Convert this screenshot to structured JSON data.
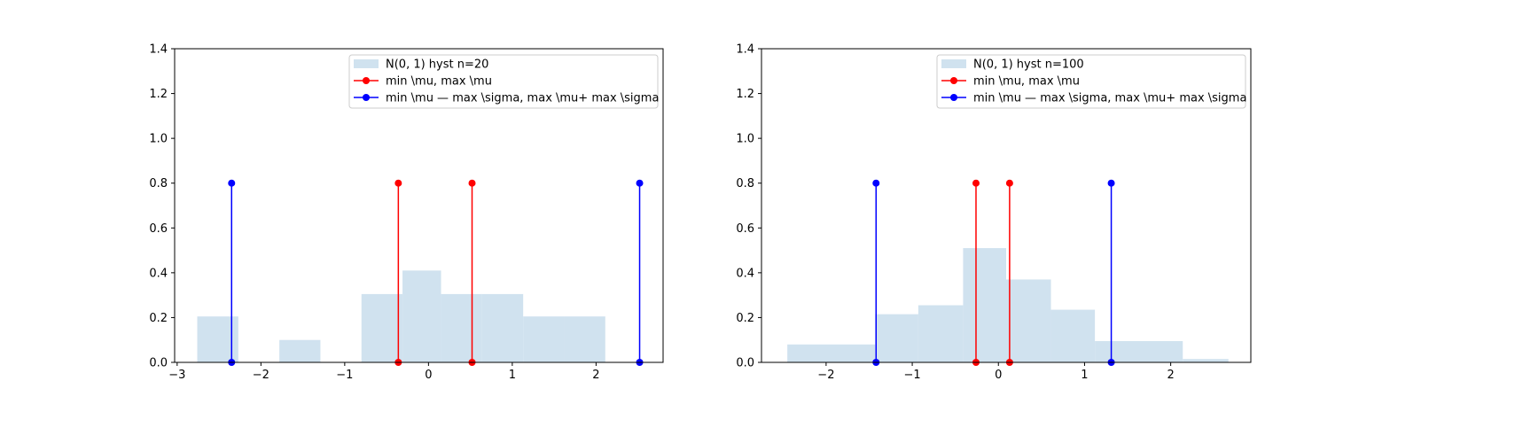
{
  "chart_data": [
    {
      "type": "bar",
      "xlim": [
        -3.03,
        2.8
      ],
      "ylim": [
        0,
        1.4
      ],
      "xticks": [
        "−3",
        "−2",
        "−1",
        "0",
        "1",
        "2"
      ],
      "xtick_values": [
        -3,
        -2,
        -1,
        0,
        1,
        2
      ],
      "yticks": [
        "0.0",
        "0.2",
        "0.4",
        "0.6",
        "0.8",
        "1.0",
        "1.2",
        "1.4"
      ],
      "ytick_values": [
        0,
        0.2,
        0.4,
        0.6,
        0.8,
        1.0,
        1.2,
        1.4
      ],
      "legend_position": "top-right",
      "histogram": {
        "name": "N(0, 1) hyst n=20",
        "color": "#d0e2ef",
        "bins": [
          {
            "x0": -2.76,
            "x1": -2.27,
            "value": 0.205
          },
          {
            "x0": -2.27,
            "x1": -1.78,
            "value": 0.0
          },
          {
            "x0": -1.78,
            "x1": -1.29,
            "value": 0.1
          },
          {
            "x0": -1.29,
            "x1": -0.8,
            "value": 0.0
          },
          {
            "x0": -0.8,
            "x1": -0.31,
            "value": 0.305
          },
          {
            "x0": -0.31,
            "x1": 0.15,
            "value": 0.41
          },
          {
            "x0": 0.15,
            "x1": 0.64,
            "value": 0.305
          },
          {
            "x0": 0.64,
            "x1": 1.13,
            "value": 0.305
          },
          {
            "x0": 1.13,
            "x1": 1.62,
            "value": 0.205
          },
          {
            "x0": 1.62,
            "x1": 2.11,
            "value": 0.205
          }
        ]
      },
      "stem_series": [
        {
          "name": "min \\mu, max \\mu",
          "color": "#ff0000",
          "x": [
            -0.36,
            0.52
          ],
          "y": 0.8
        },
        {
          "name": "min \\mu — max \\sigma, max \\mu+ max \\sigma",
          "color": "#0000ff",
          "x": [
            -2.35,
            2.52
          ],
          "y": 0.8
        }
      ]
    },
    {
      "type": "bar",
      "xlim": [
        -2.75,
        2.93
      ],
      "ylim": [
        0,
        1.4
      ],
      "xticks": [
        "−2",
        "−1",
        "0",
        "1",
        "2"
      ],
      "xtick_values": [
        -2,
        -1,
        0,
        1,
        2
      ],
      "yticks": [
        "0.0",
        "0.2",
        "0.4",
        "0.6",
        "0.8",
        "1.0",
        "1.2",
        "1.4"
      ],
      "ytick_values": [
        0,
        0.2,
        0.4,
        0.6,
        0.8,
        1.0,
        1.2,
        1.4
      ],
      "legend_position": "top-right",
      "histogram": {
        "name": "N(0, 1) hyst n=100",
        "color": "#d0e2ef",
        "bins": [
          {
            "x0": -2.45,
            "x1": -1.43,
            "value": 0.08
          },
          {
            "x0": -1.43,
            "x1": -0.93,
            "value": 0.215
          },
          {
            "x0": -0.93,
            "x1": -0.41,
            "value": 0.255
          },
          {
            "x0": -0.41,
            "x1": 0.09,
            "value": 0.51
          },
          {
            "x0": 0.09,
            "x1": 0.61,
            "value": 0.37
          },
          {
            "x0": 0.61,
            "x1": 1.12,
            "value": 0.235
          },
          {
            "x0": 1.12,
            "x1": 2.14,
            "value": 0.095
          },
          {
            "x0": 2.14,
            "x1": 2.67,
            "value": 0.015
          }
        ]
      },
      "stem_series": [
        {
          "name": "min \\mu, max \\mu",
          "color": "#ff0000",
          "x": [
            -0.26,
            0.13
          ],
          "y": 0.8
        },
        {
          "name": "min \\mu — max \\sigma, max \\mu+ max \\sigma",
          "color": "#0000ff",
          "x": [
            -1.42,
            1.31
          ],
          "y": 0.8
        }
      ]
    }
  ]
}
